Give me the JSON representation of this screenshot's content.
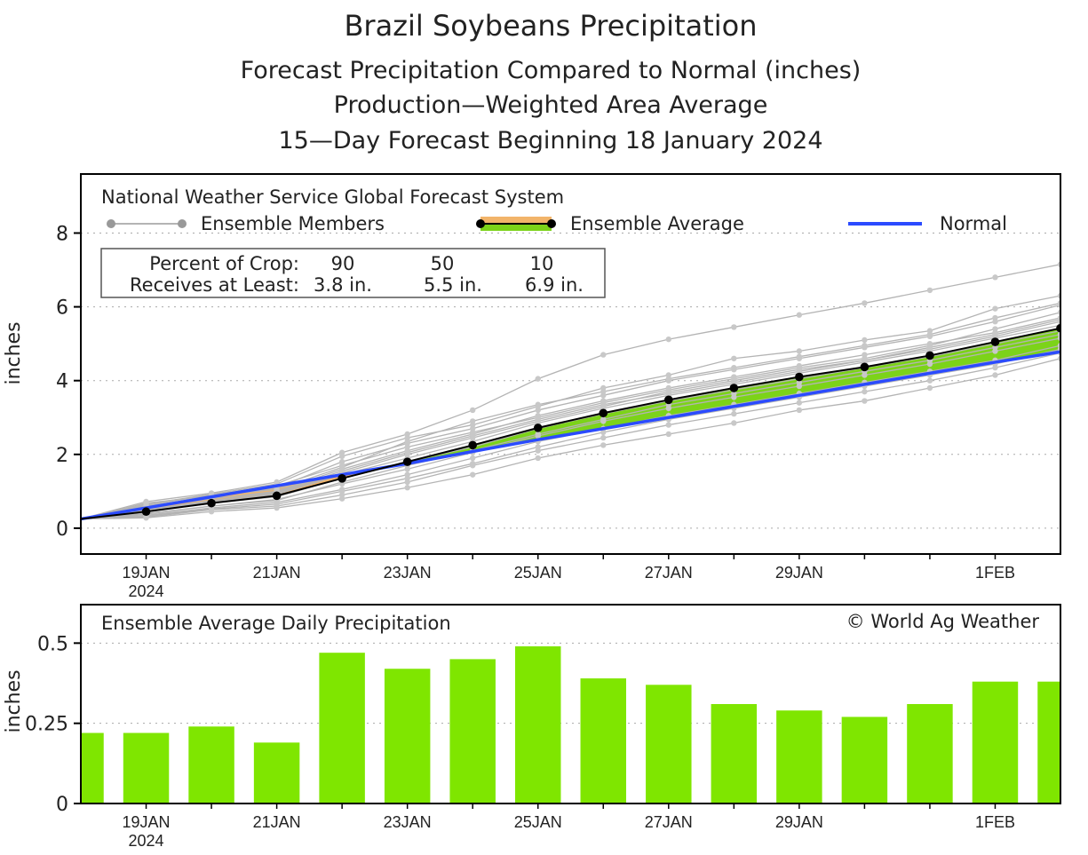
{
  "title": "Brazil Soybeans Precipitation",
  "subtitle_1": "Forecast Precipitation Compared to Normal (inches)",
  "subtitle_2": "Production—Weighted Area Average",
  "subtitle_3": "15—Day Forecast Beginning 18 January 2024",
  "colors": {
    "ensemble_member": "#b4b4b4",
    "ensemble_average": "#000000",
    "above_normal_fill": "#7cd319",
    "below_normal_fill": "#f2b46a",
    "normal": "#2b4bff",
    "bar": "#7fe600"
  },
  "chart_data": [
    {
      "type": "line",
      "name": "cumulative-precipitation",
      "model_label": "National Weather Service Global Forecast System",
      "legend": {
        "members": "Ensemble Members",
        "average": "Ensemble Average",
        "normal": "Normal"
      },
      "crop_table": {
        "row1_label": "Percent of Crop:",
        "row2_label": "Receives at Least:",
        "percents": [
          "90",
          "50",
          "10"
        ],
        "amounts": [
          "3.8 in.",
          "5.5 in.",
          "6.9 in."
        ]
      },
      "ylabel": "inches",
      "ylim": [
        -0.7,
        9.6
      ],
      "yticks": [
        "0",
        "2",
        "4",
        "6",
        "8"
      ],
      "xlim": [
        0,
        15
      ],
      "xtick_labels": [
        {
          "day": 1,
          "label": "19JAN",
          "sub": "2024"
        },
        {
          "day": 3,
          "label": "21JAN"
        },
        {
          "day": 5,
          "label": "23JAN"
        },
        {
          "day": 7,
          "label": "25JAN"
        },
        {
          "day": 9,
          "label": "27JAN"
        },
        {
          "day": 11,
          "label": "29JAN"
        },
        {
          "day": 14,
          "label": "1FEB"
        }
      ],
      "x": [
        0,
        1,
        2,
        3,
        4,
        5,
        6,
        7,
        8,
        9,
        10,
        11,
        12,
        13,
        14,
        15
      ],
      "ensemble_average": [
        0.25,
        0.45,
        0.68,
        0.88,
        1.35,
        1.8,
        2.25,
        2.72,
        3.12,
        3.48,
        3.8,
        4.1,
        4.37,
        4.68,
        5.05,
        5.42
      ],
      "normal": [
        0.25,
        0.55,
        0.85,
        1.15,
        1.45,
        1.75,
        2.08,
        2.4,
        2.7,
        3.0,
        3.3,
        3.6,
        3.9,
        4.2,
        4.5,
        4.78
      ],
      "ensemble_members": [
        [
          0.25,
          0.72,
          0.95,
          1.25,
          2.05,
          2.55,
          3.2,
          4.05,
          4.7,
          5.12,
          5.45,
          5.78,
          6.1,
          6.45,
          6.8,
          7.15
        ],
        [
          0.25,
          0.65,
          0.92,
          1.2,
          1.95,
          2.45,
          2.8,
          3.3,
          3.8,
          4.15,
          4.6,
          4.8,
          5.1,
          5.35,
          5.95,
          6.3
        ],
        [
          0.25,
          0.6,
          0.85,
          1.1,
          1.8,
          2.3,
          2.7,
          3.2,
          3.6,
          4.0,
          4.3,
          4.6,
          4.9,
          5.2,
          5.6,
          6.05
        ],
        [
          0.25,
          0.55,
          0.8,
          1.0,
          1.6,
          2.1,
          2.55,
          3.05,
          3.45,
          3.8,
          4.1,
          4.4,
          4.7,
          5.0,
          5.3,
          5.7
        ],
        [
          0.25,
          0.5,
          0.72,
          0.92,
          1.45,
          1.9,
          2.35,
          2.85,
          3.25,
          3.6,
          3.9,
          4.2,
          4.5,
          4.8,
          5.15,
          5.5
        ],
        [
          0.25,
          0.45,
          0.68,
          0.85,
          1.35,
          1.8,
          2.2,
          2.7,
          3.1,
          3.45,
          3.75,
          4.05,
          4.35,
          4.65,
          5.0,
          5.35
        ],
        [
          0.25,
          0.4,
          0.6,
          0.78,
          1.2,
          1.6,
          2.05,
          2.5,
          2.9,
          3.25,
          3.55,
          3.85,
          4.15,
          4.45,
          4.8,
          5.15
        ],
        [
          0.25,
          0.35,
          0.55,
          0.7,
          1.05,
          1.45,
          1.9,
          2.35,
          2.7,
          3.05,
          3.35,
          3.65,
          3.95,
          4.25,
          4.55,
          4.95
        ],
        [
          0.25,
          0.3,
          0.5,
          0.6,
          0.9,
          1.25,
          1.7,
          2.1,
          2.45,
          2.8,
          3.1,
          3.4,
          3.7,
          4.0,
          4.35,
          4.75
        ],
        [
          0.25,
          0.28,
          0.45,
          0.55,
          0.8,
          1.1,
          1.45,
          1.9,
          2.25,
          2.55,
          2.85,
          3.2,
          3.45,
          3.8,
          4.15,
          4.6
        ],
        [
          0.25,
          0.62,
          0.9,
          1.15,
          1.7,
          2.2,
          2.6,
          3.0,
          3.4,
          3.75,
          4.05,
          4.35,
          4.6,
          4.95,
          5.4,
          5.85
        ],
        [
          0.25,
          0.48,
          0.7,
          0.95,
          1.5,
          2.0,
          2.45,
          2.9,
          3.3,
          3.7,
          4.0,
          4.3,
          4.55,
          4.85,
          5.2,
          5.6
        ],
        [
          0.25,
          0.38,
          0.6,
          0.75,
          1.25,
          1.7,
          2.1,
          2.55,
          2.95,
          3.35,
          3.65,
          3.95,
          4.25,
          4.55,
          4.9,
          5.25
        ],
        [
          0.25,
          0.33,
          0.52,
          0.65,
          1.0,
          1.35,
          1.75,
          2.2,
          2.6,
          2.95,
          3.25,
          3.55,
          3.85,
          4.15,
          4.45,
          4.85
        ],
        [
          0.25,
          0.68,
          0.88,
          1.05,
          1.65,
          2.35,
          2.9,
          3.35,
          3.7,
          4.05,
          4.35,
          4.65,
          4.95,
          5.25,
          5.7,
          6.1
        ],
        [
          0.25,
          0.5,
          0.75,
          0.98,
          1.55,
          2.05,
          2.5,
          2.95,
          3.35,
          3.65,
          3.95,
          4.25,
          4.55,
          4.9,
          5.25,
          5.65
        ]
      ]
    },
    {
      "type": "bar",
      "name": "daily-precipitation",
      "title": "Ensemble Average Daily Precipitation",
      "credit": "© World Ag Weather",
      "ylabel": "inches",
      "ylim": [
        0,
        0.62
      ],
      "yticks": [
        "0",
        "0.25",
        "0.5"
      ],
      "x": [
        0,
        1,
        2,
        3,
        4,
        5,
        6,
        7,
        8,
        9,
        10,
        11,
        12,
        13,
        14,
        15
      ],
      "values": [
        0.22,
        0.22,
        0.24,
        0.19,
        0.47,
        0.42,
        0.45,
        0.49,
        0.39,
        0.37,
        0.31,
        0.29,
        0.27,
        0.31,
        0.38,
        0.38
      ],
      "xtick_labels": [
        {
          "day": 1,
          "label": "19JAN",
          "sub": "2024"
        },
        {
          "day": 3,
          "label": "21JAN"
        },
        {
          "day": 5,
          "label": "23JAN"
        },
        {
          "day": 7,
          "label": "25JAN"
        },
        {
          "day": 9,
          "label": "27JAN"
        },
        {
          "day": 11,
          "label": "29JAN"
        },
        {
          "day": 14,
          "label": "1FEB"
        }
      ]
    }
  ]
}
